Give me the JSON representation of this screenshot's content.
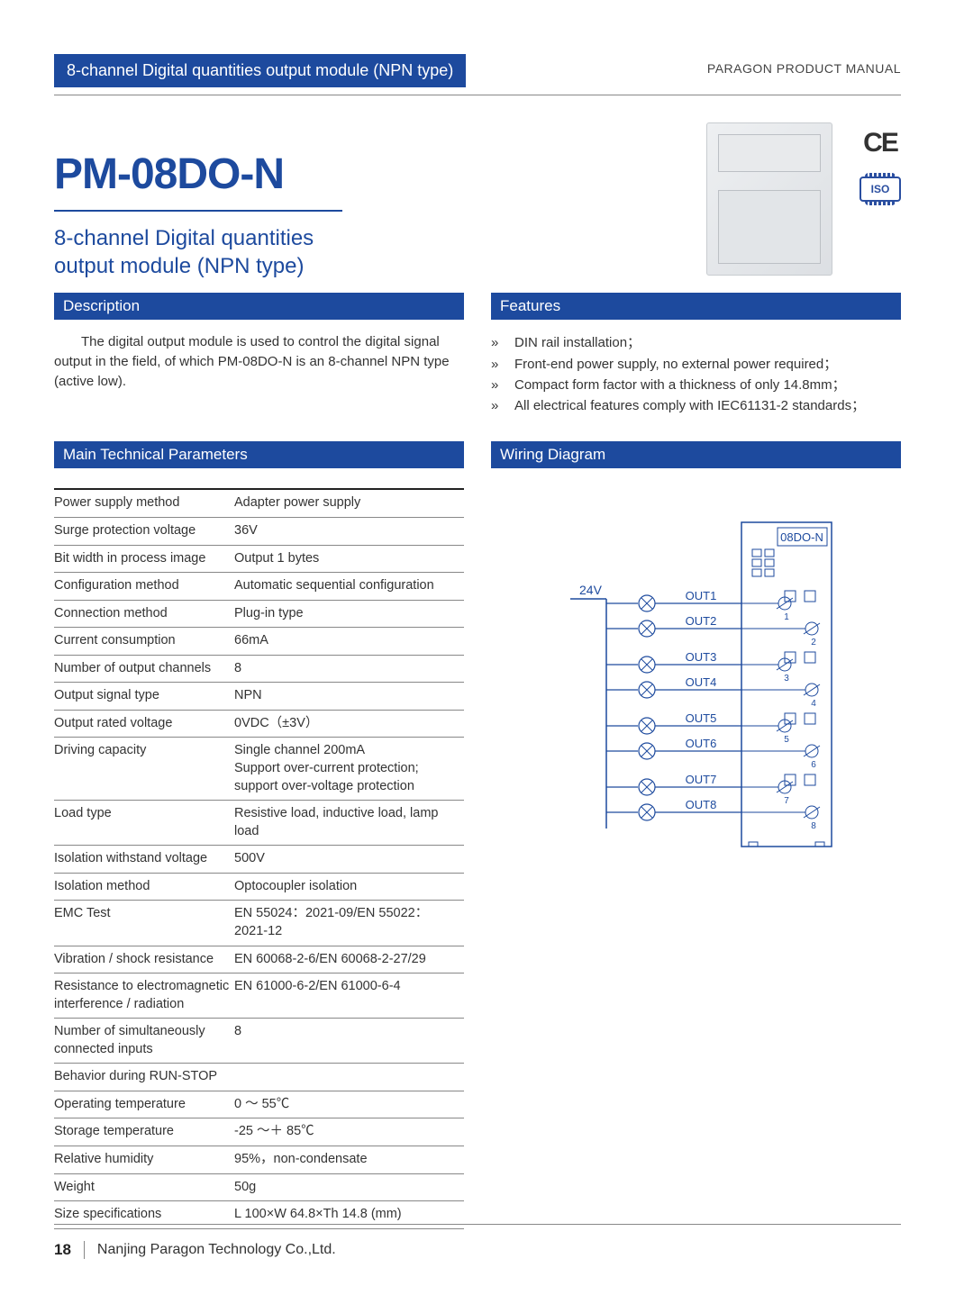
{
  "header": {
    "banner": "8-channel Digital quantities output module (NPN type)",
    "manual_label": "PARAGON PRODUCT MANUAL"
  },
  "product": {
    "code": "PM-08DO-N",
    "subtitle_line1": "8-channel Digital quantities",
    "subtitle_line2": "output module (NPN type)",
    "ce_mark": "CE",
    "iso_label": "ISO"
  },
  "sections": {
    "description_title": "Description",
    "features_title": "Features",
    "params_title": "Main Technical Parameters",
    "wiring_title": "Wiring Diagram"
  },
  "description": "The digital output module is used to control the digital signal output in the field, of which PM-08DO-N is an 8-channel NPN type (active low).",
  "features": [
    "DIN rail installation；",
    "Front-end power supply, no external power required；",
    "Compact form factor with a thickness of only 14.8mm；",
    "All electrical features comply with IEC61131-2 standards；"
  ],
  "params": [
    {
      "label": "Power supply method",
      "value": "Adapter power supply"
    },
    {
      "label": "Surge protection voltage",
      "value": "36V"
    },
    {
      "label": "Bit width in process image",
      "value": "Output 1 bytes"
    },
    {
      "label": "Configuration method",
      "value": "Automatic sequential configuration"
    },
    {
      "label": "Connection method",
      "value": "Plug-in type"
    },
    {
      "label": "Current consumption",
      "value": "66mA"
    },
    {
      "label": "Number of output channels",
      "value": "8"
    },
    {
      "label": "Output signal type",
      "value": "NPN"
    },
    {
      "label": "Output rated voltage",
      "value": "0VDC（±3V）"
    },
    {
      "label": "Driving capacity",
      "value": "Single channel 200mA\nSupport over-current protection; support over-voltage protection"
    },
    {
      "label": "Load type",
      "value": "Resistive load, inductive load, lamp load"
    },
    {
      "label": "Isolation withstand voltage",
      "value": "500V"
    },
    {
      "label": "Isolation method",
      "value": "Optocoupler isolation"
    },
    {
      "label": "EMC Test",
      "value": "EN 55024：2021-09/EN 55022：2021-12"
    },
    {
      "label": "Vibration / shock resistance",
      "value": "EN 60068-2-6/EN 60068-2-27/29"
    },
    {
      "label": "Resistance to electromagnetic interference / radiation",
      "value": "EN 61000-6-2/EN 61000-6-4"
    },
    {
      "label": "Number of simultaneously connected inputs",
      "value": "8"
    },
    {
      "label": "Behavior during RUN-STOP",
      "value": ""
    },
    {
      "label": "Operating temperature",
      "value": "0 ～ 55℃"
    },
    {
      "label": "Storage temperature",
      "value": "-25 ～＋ 85℃"
    },
    {
      "label": "Relative humidity",
      "value": "95%，non-condensate"
    },
    {
      "label": "Weight",
      "value": "50g"
    },
    {
      "label": "Size specifications",
      "value": "L 100×W 64.8×Th 14.8 (mm)"
    }
  ],
  "wiring": {
    "module_label": "08DO-N",
    "supply_label": "24V",
    "outputs": [
      "OUT1",
      "OUT2",
      "OUT3",
      "OUT4",
      "OUT5",
      "OUT6",
      "OUT7",
      "OUT8"
    ],
    "terminal_numbers": [
      "1",
      "2",
      "3",
      "4",
      "5",
      "6",
      "7",
      "8"
    ],
    "colors": {
      "stroke": "#1d4a9e",
      "fill_light": "#ffffff"
    }
  },
  "footer": {
    "page_number": "18",
    "company": "Nanjing Paragon Technology Co.,Ltd."
  }
}
